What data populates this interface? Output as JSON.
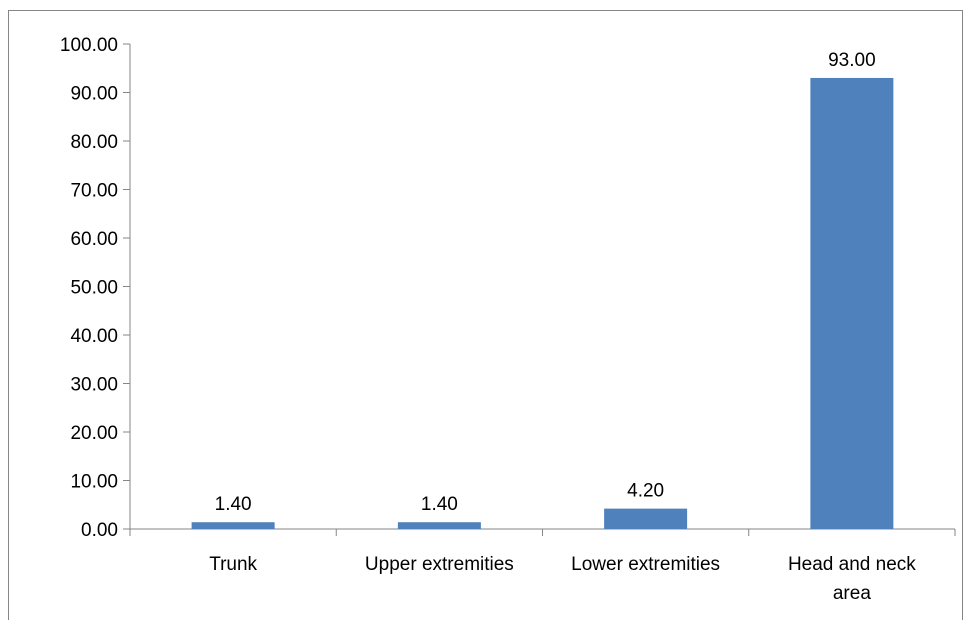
{
  "chart_data": {
    "type": "bar",
    "categories": [
      "Trunk",
      "Upper extremities",
      "Lower extremities",
      "Head and neck area"
    ],
    "category_lines": [
      [
        "Trunk"
      ],
      [
        "Upper extremities"
      ],
      [
        "Lower extremities"
      ],
      [
        "Head and neck",
        "area"
      ]
    ],
    "values": [
      1.4,
      1.4,
      4.2,
      93.0
    ],
    "value_labels": [
      "1.40",
      "1.40",
      "4.20",
      "93.00"
    ],
    "yticks": [
      "0.00",
      "10.00",
      "20.00",
      "30.00",
      "40.00",
      "50.00",
      "60.00",
      "70.00",
      "80.00",
      "90.00",
      "100.00"
    ],
    "ylim": [
      0,
      100
    ],
    "title": "",
    "xlabel": "",
    "ylabel": "",
    "grid": false,
    "bar_color": "#4F81BD"
  }
}
